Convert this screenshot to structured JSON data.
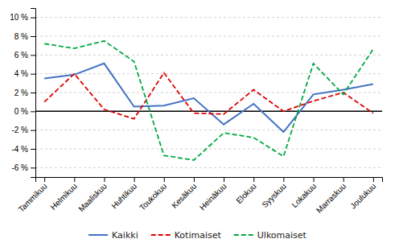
{
  "chart_data": {
    "type": "line",
    "categories": [
      "Tammikuu",
      "Helmikuu",
      "Maaliskuu",
      "Huhtikuu",
      "Toukokuu",
      "Kesäkuu",
      "Heinäkuu",
      "Elokuu",
      "Syyskuu",
      "Lokakuu",
      "Marraskuu",
      "Joulukuu"
    ],
    "series": [
      {
        "name": "Kaikki",
        "color": "#4472c4",
        "line_style": "solid",
        "values": [
          3.5,
          3.9,
          5.1,
          0.5,
          0.6,
          1.4,
          -1.4,
          0.8,
          -2.2,
          1.8,
          2.3,
          2.9
        ]
      },
      {
        "name": "Kotimaiset",
        "color": "#e00000",
        "line_style": "dashed",
        "values": [
          1.0,
          4.0,
          0.2,
          -0.8,
          4.1,
          -0.2,
          -0.3,
          2.3,
          0.0,
          1.1,
          2.0,
          -0.2
        ]
      },
      {
        "name": "Ulkomaiset",
        "color": "#00aa44",
        "line_style": "dashed",
        "values": [
          7.2,
          6.7,
          7.5,
          5.3,
          -4.7,
          -5.2,
          -2.3,
          -2.8,
          -4.8,
          5.1,
          1.8,
          6.6
        ]
      }
    ],
    "ylim": [
      -7,
      11
    ],
    "yticks": [
      {
        "value": -6,
        "label": "-6 %"
      },
      {
        "value": -4,
        "label": "-4 %"
      },
      {
        "value": -2,
        "label": "-2 %"
      },
      {
        "value": 0,
        "label": "0 %"
      },
      {
        "value": 2,
        "label": "2 %"
      },
      {
        "value": 4,
        "label": "4 %"
      },
      {
        "value": 6,
        "label": "6 %"
      },
      {
        "value": 8,
        "label": "8 %"
      },
      {
        "value": 10,
        "label": "10 %"
      }
    ],
    "grid": true,
    "legend": "bottom"
  }
}
